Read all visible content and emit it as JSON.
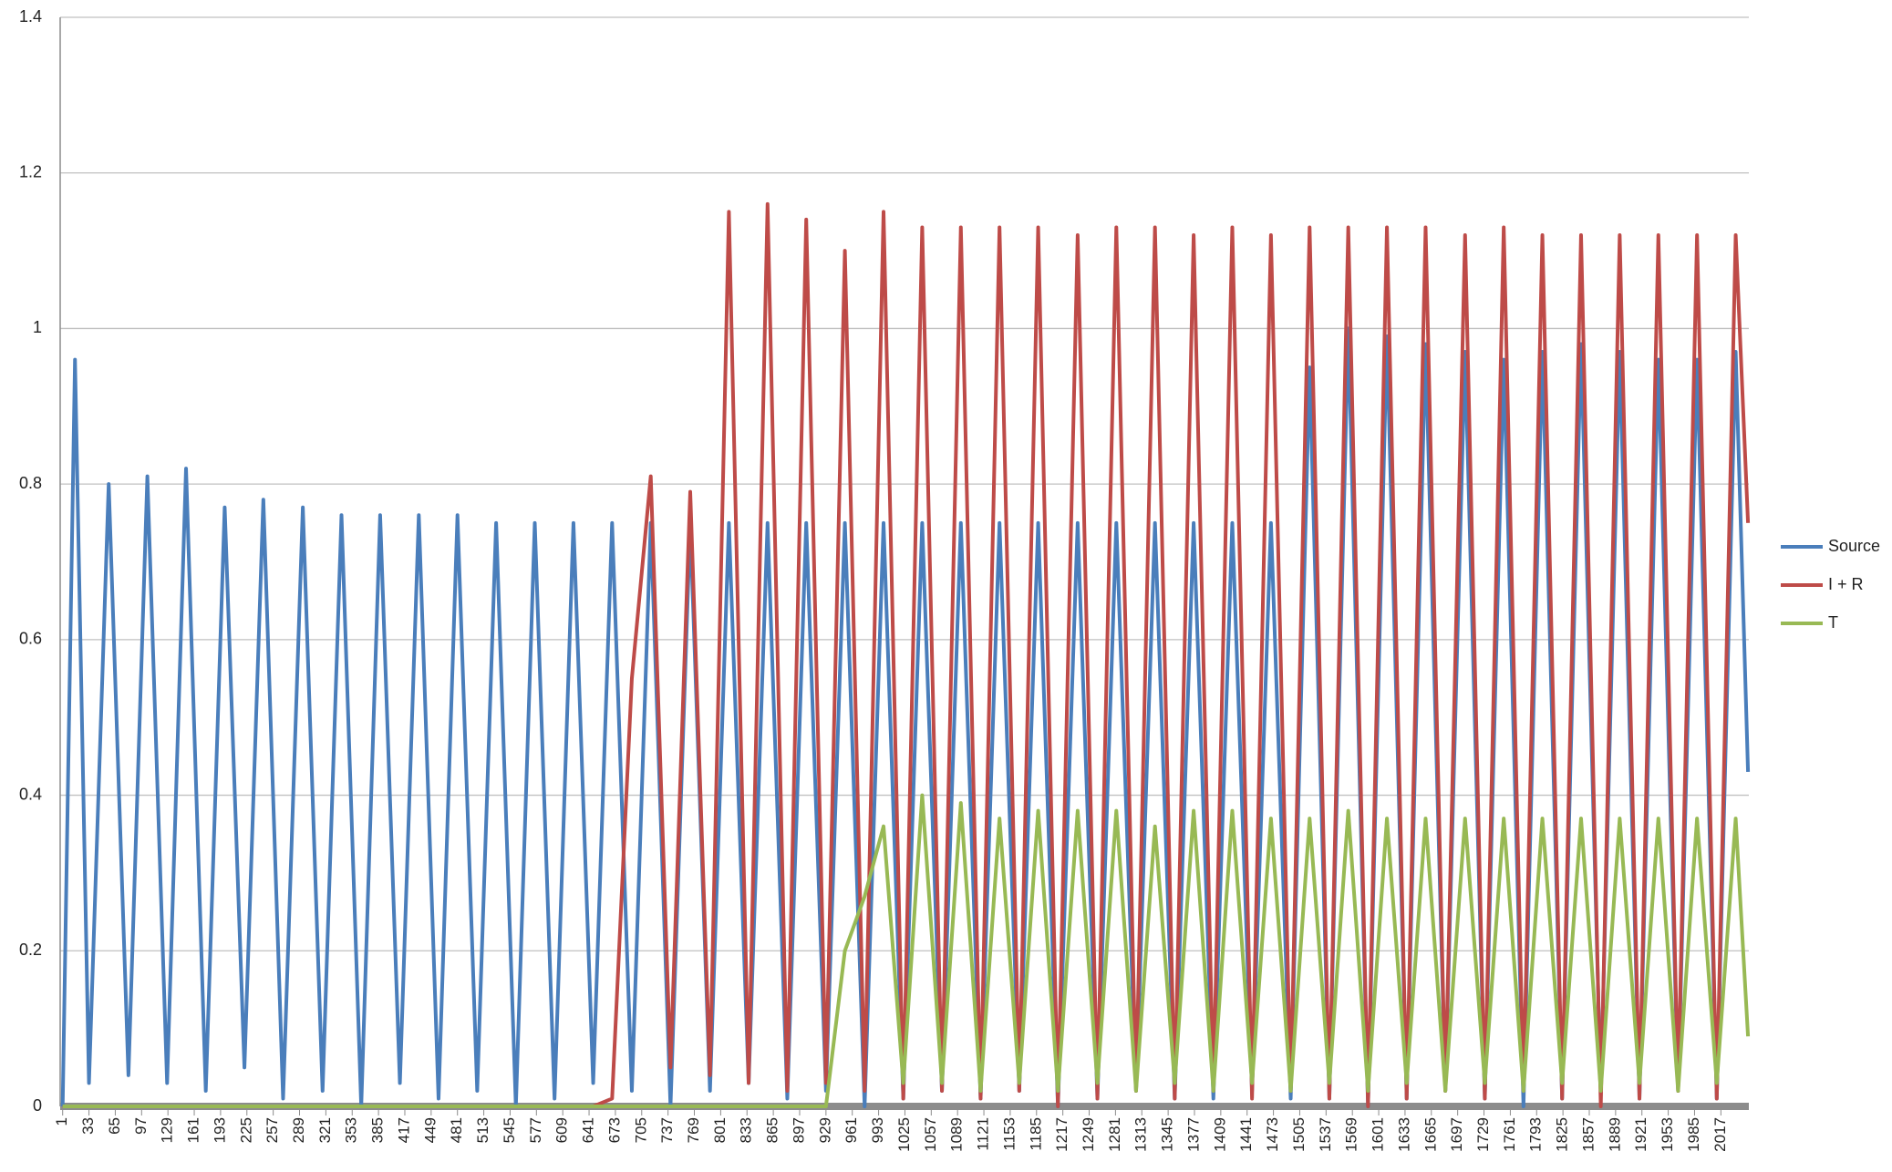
{
  "chart_data": {
    "type": "line",
    "x": [
      1,
      16,
      33,
      57,
      81,
      104,
      128,
      151,
      175,
      198,
      222,
      245,
      269,
      293,
      317,
      340,
      364,
      387,
      411,
      434,
      458,
      481,
      505,
      528,
      552,
      575,
      599,
      622,
      646,
      669,
      693,
      716,
      740,
      764,
      788,
      811,
      835,
      858,
      882,
      905,
      929,
      952,
      976,
      999,
      1023,
      1046,
      1070,
      1093,
      1117,
      1140,
      1164,
      1187,
      1211,
      1235,
      1259,
      1282,
      1306,
      1329,
      1353,
      1376,
      1400,
      1423,
      1447,
      1470,
      1494,
      1517,
      1541,
      1564,
      1588,
      1611,
      1635,
      1658,
      1682,
      1706,
      1730,
      1753,
      1777,
      1800,
      1824,
      1847,
      1871,
      1894,
      1918,
      1941,
      1965,
      1988,
      2012,
      2035,
      2050
    ],
    "series": [
      {
        "name": "Source",
        "color": "#4a7ebb",
        "values": [
          0,
          0.96,
          0.03,
          0.8,
          0.04,
          0.81,
          0.03,
          0.82,
          0.02,
          0.77,
          0.05,
          0.78,
          0.01,
          0.77,
          0.02,
          0.76,
          0.0,
          0.76,
          0.03,
          0.76,
          0.01,
          0.76,
          0.02,
          0.75,
          0.0,
          0.75,
          0.01,
          0.75,
          0.03,
          0.75,
          0.02,
          0.75,
          0.0,
          0.75,
          0.02,
          0.75,
          0.03,
          0.75,
          0.01,
          0.75,
          0.02,
          0.75,
          0.0,
          0.75,
          0.01,
          0.75,
          0.02,
          0.75,
          0.01,
          0.75,
          0.02,
          0.75,
          0.0,
          0.75,
          0.01,
          0.75,
          0.02,
          0.75,
          0.01,
          0.75,
          0.01,
          0.75,
          0.02,
          0.75,
          0.01,
          0.95,
          0.01,
          1.0,
          0.0,
          0.99,
          0.01,
          0.98,
          0.02,
          0.97,
          0.01,
          0.96,
          0.0,
          0.97,
          0.01,
          0.98,
          0.02,
          0.97,
          0.01,
          0.96,
          0.02,
          0.96,
          0.01,
          0.97,
          0.43
        ]
      },
      {
        "name": "I + R",
        "color": "#be4b48",
        "values": [
          0,
          0,
          0,
          0,
          0,
          0,
          0,
          0,
          0,
          0,
          0,
          0,
          0,
          0,
          0,
          0,
          0,
          0,
          0,
          0,
          0,
          0,
          0,
          0,
          0,
          0,
          0,
          0,
          0,
          0.01,
          0.55,
          0.81,
          0.05,
          0.79,
          0.04,
          1.15,
          0.03,
          1.16,
          0.02,
          1.14,
          0.03,
          1.1,
          0.02,
          1.15,
          0.01,
          1.13,
          0.02,
          1.13,
          0.01,
          1.13,
          0.02,
          1.13,
          0.0,
          1.12,
          0.01,
          1.13,
          0.02,
          1.13,
          0.01,
          1.12,
          0.02,
          1.13,
          0.01,
          1.12,
          0.02,
          1.13,
          0.01,
          1.13,
          0.0,
          1.13,
          0.01,
          1.13,
          0.02,
          1.12,
          0.01,
          1.13,
          0.02,
          1.12,
          0.01,
          1.12,
          0.0,
          1.12,
          0.01,
          1.12,
          0.02,
          1.12,
          0.01,
          1.12,
          0.75
        ]
      },
      {
        "name": "T",
        "color": "#98b954",
        "values": [
          0,
          0,
          0,
          0,
          0,
          0,
          0,
          0,
          0,
          0,
          0,
          0,
          0,
          0,
          0,
          0,
          0,
          0,
          0,
          0,
          0,
          0,
          0,
          0,
          0,
          0,
          0,
          0,
          0,
          0,
          0,
          0,
          0,
          0,
          0,
          0,
          0,
          0,
          0,
          0,
          0,
          0.2,
          0.27,
          0.36,
          0.03,
          0.4,
          0.03,
          0.39,
          0.02,
          0.37,
          0.03,
          0.38,
          0.02,
          0.38,
          0.03,
          0.38,
          0.02,
          0.36,
          0.03,
          0.38,
          0.02,
          0.38,
          0.03,
          0.37,
          0.02,
          0.37,
          0.03,
          0.38,
          0.02,
          0.37,
          0.03,
          0.37,
          0.02,
          0.37,
          0.03,
          0.37,
          0.02,
          0.37,
          0.03,
          0.37,
          0.02,
          0.37,
          0.03,
          0.37,
          0.02,
          0.37,
          0.03,
          0.37,
          0.09
        ]
      }
    ],
    "xlim": [
      -2,
      2051
    ],
    "xticks": [
      1,
      33,
      65,
      97,
      129,
      161,
      193,
      225,
      257,
      289,
      321,
      353,
      385,
      417,
      449,
      481,
      513,
      545,
      577,
      609,
      641,
      673,
      705,
      737,
      769,
      801,
      833,
      865,
      897,
      929,
      961,
      993,
      1025,
      1057,
      1089,
      1121,
      1153,
      1185,
      1217,
      1249,
      1281,
      1313,
      1345,
      1377,
      1409,
      1441,
      1473,
      1505,
      1537,
      1569,
      1601,
      1633,
      1665,
      1697,
      1729,
      1761,
      1793,
      1825,
      1857,
      1889,
      1921,
      1953,
      1985,
      2017
    ],
    "ylim": [
      0,
      1.4
    ],
    "yticks": [
      0,
      0.2,
      0.4,
      0.6,
      0.8,
      1,
      1.2,
      1.4
    ],
    "grid": true,
    "legend": "right"
  }
}
